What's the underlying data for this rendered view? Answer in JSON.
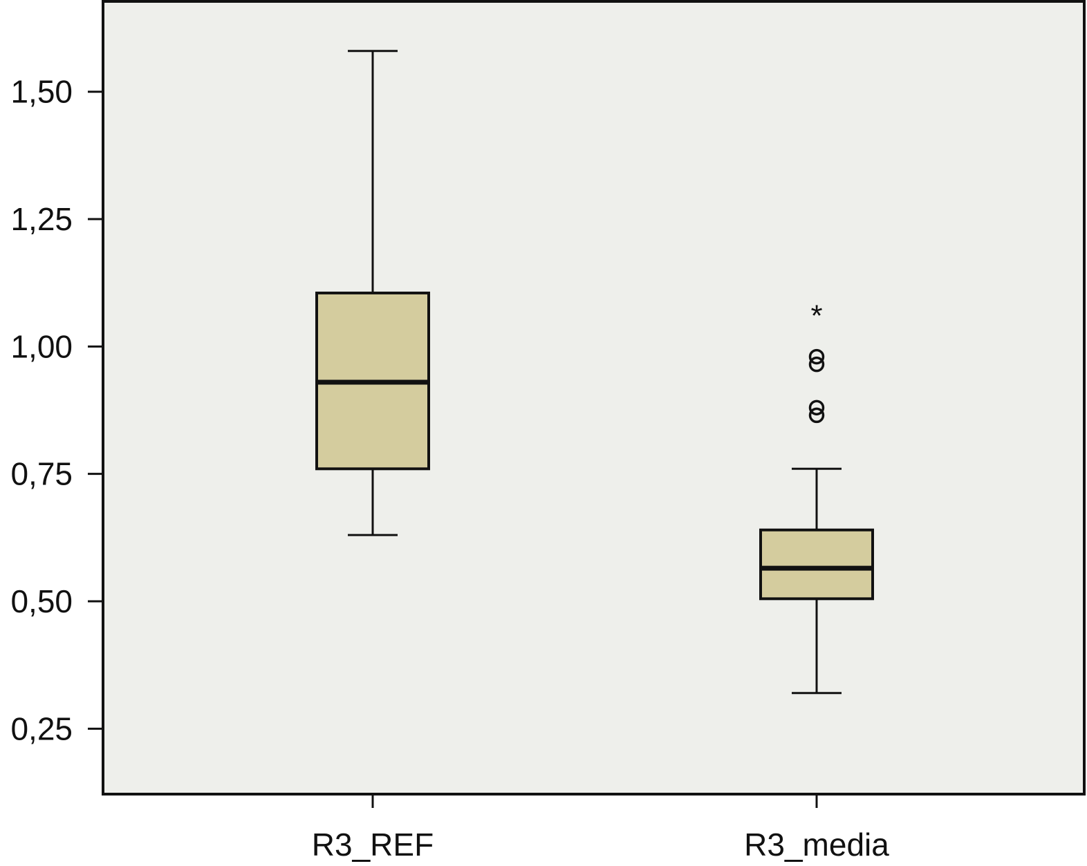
{
  "chart_data": {
    "type": "box",
    "categories": [
      "R3_REF",
      "R3_media"
    ],
    "y_ticks": [
      "0,25",
      "0,50",
      "0,75",
      "1,00",
      "1,25",
      "1,50"
    ],
    "y_tick_values": [
      0.25,
      0.5,
      0.75,
      1.0,
      1.25,
      1.5
    ],
    "ylim": [
      0.12,
      1.67
    ],
    "grid": false,
    "legend": "none",
    "colors": {
      "plot_background": "#eeefeb",
      "box_fill": "#d4cc9e",
      "stroke": "#111111"
    },
    "series": [
      {
        "category": "R3_REF",
        "whisker_low": 0.63,
        "q1": 0.76,
        "median": 0.93,
        "q3": 1.105,
        "whisker_high": 1.58,
        "outliers": []
      },
      {
        "category": "R3_media",
        "whisker_low": 0.32,
        "q1": 0.505,
        "median": 0.565,
        "q3": 0.64,
        "whisker_high": 0.76,
        "outliers": [
          {
            "value": 0.88,
            "marker": "circle"
          },
          {
            "value": 0.865,
            "marker": "circle"
          },
          {
            "value": 0.98,
            "marker": "circle"
          },
          {
            "value": 0.965,
            "marker": "circle"
          },
          {
            "value": 1.07,
            "marker": "star"
          }
        ]
      }
    ]
  }
}
